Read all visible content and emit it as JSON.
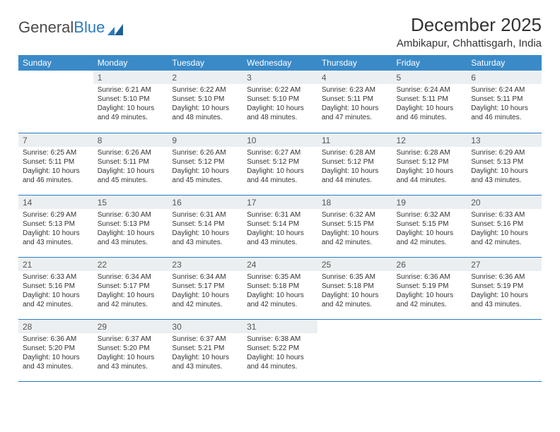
{
  "brand": {
    "part1": "General",
    "part2": "Blue"
  },
  "title": "December 2025",
  "location": "Ambikapur, Chhattisgarh, India",
  "colors": {
    "header_bg": "#3a8ac8",
    "header_text": "#ffffff",
    "daynum_bg": "#eceff1",
    "row_border": "#2b7bbf",
    "text": "#333333",
    "brand_gray": "#4a4a4a",
    "brand_blue": "#2b7bbf"
  },
  "weekdays": [
    "Sunday",
    "Monday",
    "Tuesday",
    "Wednesday",
    "Thursday",
    "Friday",
    "Saturday"
  ],
  "label_prefix": {
    "sunrise": "Sunrise: ",
    "sunset": "Sunset: ",
    "daylight": "Daylight: "
  },
  "weeks": [
    [
      {
        "n": "",
        "sr": "",
        "ss": "",
        "dl": ""
      },
      {
        "n": "1",
        "sr": "6:21 AM",
        "ss": "5:10 PM",
        "dl": "10 hours and 49 minutes."
      },
      {
        "n": "2",
        "sr": "6:22 AM",
        "ss": "5:10 PM",
        "dl": "10 hours and 48 minutes."
      },
      {
        "n": "3",
        "sr": "6:22 AM",
        "ss": "5:10 PM",
        "dl": "10 hours and 48 minutes."
      },
      {
        "n": "4",
        "sr": "6:23 AM",
        "ss": "5:11 PM",
        "dl": "10 hours and 47 minutes."
      },
      {
        "n": "5",
        "sr": "6:24 AM",
        "ss": "5:11 PM",
        "dl": "10 hours and 46 minutes."
      },
      {
        "n": "6",
        "sr": "6:24 AM",
        "ss": "5:11 PM",
        "dl": "10 hours and 46 minutes."
      }
    ],
    [
      {
        "n": "7",
        "sr": "6:25 AM",
        "ss": "5:11 PM",
        "dl": "10 hours and 46 minutes."
      },
      {
        "n": "8",
        "sr": "6:26 AM",
        "ss": "5:11 PM",
        "dl": "10 hours and 45 minutes."
      },
      {
        "n": "9",
        "sr": "6:26 AM",
        "ss": "5:12 PM",
        "dl": "10 hours and 45 minutes."
      },
      {
        "n": "10",
        "sr": "6:27 AM",
        "ss": "5:12 PM",
        "dl": "10 hours and 44 minutes."
      },
      {
        "n": "11",
        "sr": "6:28 AM",
        "ss": "5:12 PM",
        "dl": "10 hours and 44 minutes."
      },
      {
        "n": "12",
        "sr": "6:28 AM",
        "ss": "5:12 PM",
        "dl": "10 hours and 44 minutes."
      },
      {
        "n": "13",
        "sr": "6:29 AM",
        "ss": "5:13 PM",
        "dl": "10 hours and 43 minutes."
      }
    ],
    [
      {
        "n": "14",
        "sr": "6:29 AM",
        "ss": "5:13 PM",
        "dl": "10 hours and 43 minutes."
      },
      {
        "n": "15",
        "sr": "6:30 AM",
        "ss": "5:13 PM",
        "dl": "10 hours and 43 minutes."
      },
      {
        "n": "16",
        "sr": "6:31 AM",
        "ss": "5:14 PM",
        "dl": "10 hours and 43 minutes."
      },
      {
        "n": "17",
        "sr": "6:31 AM",
        "ss": "5:14 PM",
        "dl": "10 hours and 43 minutes."
      },
      {
        "n": "18",
        "sr": "6:32 AM",
        "ss": "5:15 PM",
        "dl": "10 hours and 42 minutes."
      },
      {
        "n": "19",
        "sr": "6:32 AM",
        "ss": "5:15 PM",
        "dl": "10 hours and 42 minutes."
      },
      {
        "n": "20",
        "sr": "6:33 AM",
        "ss": "5:16 PM",
        "dl": "10 hours and 42 minutes."
      }
    ],
    [
      {
        "n": "21",
        "sr": "6:33 AM",
        "ss": "5:16 PM",
        "dl": "10 hours and 42 minutes."
      },
      {
        "n": "22",
        "sr": "6:34 AM",
        "ss": "5:17 PM",
        "dl": "10 hours and 42 minutes."
      },
      {
        "n": "23",
        "sr": "6:34 AM",
        "ss": "5:17 PM",
        "dl": "10 hours and 42 minutes."
      },
      {
        "n": "24",
        "sr": "6:35 AM",
        "ss": "5:18 PM",
        "dl": "10 hours and 42 minutes."
      },
      {
        "n": "25",
        "sr": "6:35 AM",
        "ss": "5:18 PM",
        "dl": "10 hours and 42 minutes."
      },
      {
        "n": "26",
        "sr": "6:36 AM",
        "ss": "5:19 PM",
        "dl": "10 hours and 42 minutes."
      },
      {
        "n": "27",
        "sr": "6:36 AM",
        "ss": "5:19 PM",
        "dl": "10 hours and 43 minutes."
      }
    ],
    [
      {
        "n": "28",
        "sr": "6:36 AM",
        "ss": "5:20 PM",
        "dl": "10 hours and 43 minutes."
      },
      {
        "n": "29",
        "sr": "6:37 AM",
        "ss": "5:20 PM",
        "dl": "10 hours and 43 minutes."
      },
      {
        "n": "30",
        "sr": "6:37 AM",
        "ss": "5:21 PM",
        "dl": "10 hours and 43 minutes."
      },
      {
        "n": "31",
        "sr": "6:38 AM",
        "ss": "5:22 PM",
        "dl": "10 hours and 44 minutes."
      },
      {
        "n": "",
        "sr": "",
        "ss": "",
        "dl": ""
      },
      {
        "n": "",
        "sr": "",
        "ss": "",
        "dl": ""
      },
      {
        "n": "",
        "sr": "",
        "ss": "",
        "dl": ""
      }
    ]
  ]
}
